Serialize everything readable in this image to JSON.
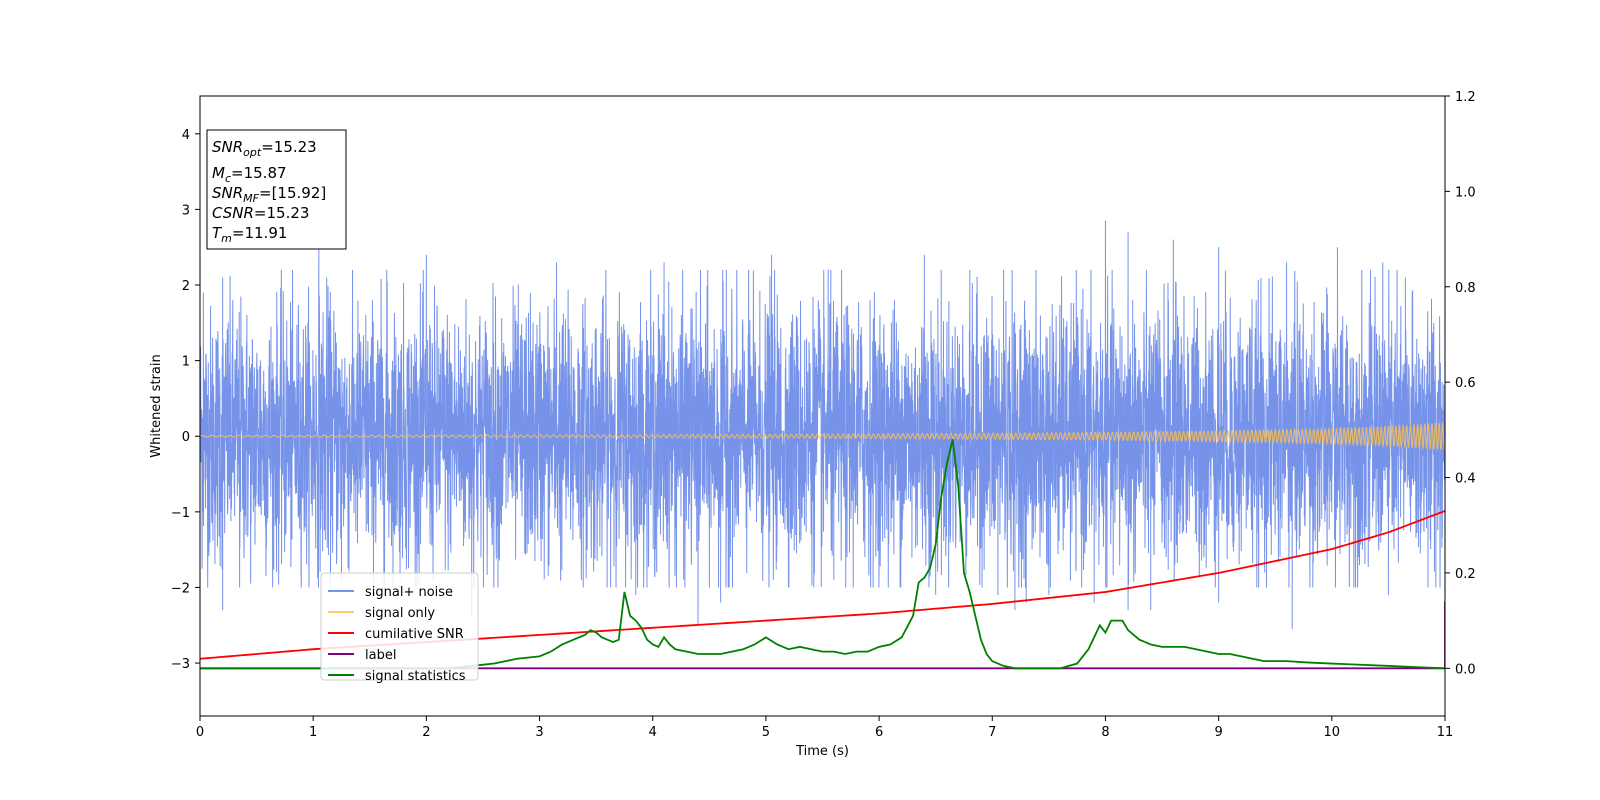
{
  "chart_data": {
    "type": "line",
    "xlabel": "Time (s)",
    "ylabel": "Whitened strain",
    "xlim": [
      0,
      11
    ],
    "ylim_left": [
      -3.7,
      4.5
    ],
    "ylim_right": [
      -0.1,
      1.2
    ],
    "x_ticks": [
      0,
      1,
      2,
      3,
      4,
      5,
      6,
      7,
      8,
      9,
      10,
      11
    ],
    "y_ticks_left": [
      -3,
      -2,
      -1,
      0,
      1,
      2,
      3,
      4
    ],
    "y_ticks_right": [
      "0.0",
      "0.2",
      "0.4",
      "0.6",
      "0.8",
      "1.0",
      "1.2"
    ],
    "grid": false,
    "legend_position": "lower-left",
    "annotation": {
      "lines": [
        {
          "name": "SNR",
          "sub": "opt",
          "value": "=15.23"
        },
        {
          "name": "M",
          "sub": "c",
          "value": "=15.87"
        },
        {
          "name": "SNR",
          "sub": "MF",
          "value": "=[15.92]"
        },
        {
          "name": "CSNR",
          "sub": "",
          "value": "=15.23"
        },
        {
          "name": "T",
          "sub": "m",
          "value": "=11.91"
        }
      ]
    },
    "series": [
      {
        "name": "signal+ noise",
        "axis": "left",
        "color": "#4169e1",
        "description_amplitude_std": 0.85,
        "peak_points": [
          [
            0.03,
            1.9
          ],
          [
            0.2,
            2.1
          ],
          [
            1.05,
            2.6
          ],
          [
            1.12,
            2.1
          ],
          [
            1.65,
            2.2
          ],
          [
            2.0,
            2.4
          ],
          [
            3.15,
            2.3
          ],
          [
            4.1,
            2.3
          ],
          [
            4.65,
            2.2
          ],
          [
            5.05,
            2.4
          ],
          [
            5.55,
            2.2
          ],
          [
            6.4,
            2.4
          ],
          [
            7.1,
            2.2
          ],
          [
            8.0,
            2.85
          ],
          [
            8.2,
            2.7
          ],
          [
            8.6,
            2.6
          ],
          [
            9.0,
            2.5
          ],
          [
            9.6,
            2.3
          ],
          [
            10.05,
            2.5
          ],
          [
            10.45,
            2.3
          ],
          [
            10.65,
            2.1
          ],
          [
            11.0,
            2.2
          ]
        ],
        "trough_points": [
          [
            0.2,
            -2.3
          ],
          [
            0.35,
            -2.0
          ],
          [
            1.25,
            -1.9
          ],
          [
            2.4,
            -2.4
          ],
          [
            3.85,
            -2.1
          ],
          [
            4.4,
            -2.5
          ],
          [
            4.6,
            -2.2
          ],
          [
            5.6,
            -1.9
          ],
          [
            6.5,
            -2.1
          ],
          [
            7.05,
            -2.1
          ],
          [
            7.2,
            -2.3
          ],
          [
            7.3,
            -2.2
          ],
          [
            7.5,
            -2.1
          ],
          [
            7.9,
            -2.2
          ],
          [
            8.2,
            -2.3
          ],
          [
            8.4,
            -2.3
          ],
          [
            9.0,
            -2.2
          ],
          [
            9.65,
            -2.55
          ],
          [
            10.5,
            -2.1
          ],
          [
            10.85,
            -2.0
          ]
        ]
      },
      {
        "name": "signal only",
        "axis": "left",
        "color": "#ffc04c",
        "envelope": [
          [
            0,
            0.01
          ],
          [
            2,
            0.015
          ],
          [
            4,
            0.02
          ],
          [
            6,
            0.03
          ],
          [
            8,
            0.05
          ],
          [
            9,
            0.07
          ],
          [
            10,
            0.1
          ],
          [
            10.5,
            0.13
          ],
          [
            11,
            0.18
          ]
        ]
      },
      {
        "name": "cumilative SNR",
        "axis": "right",
        "color": "#ff0000",
        "x": [
          0,
          1,
          2,
          3,
          4,
          5,
          6,
          7,
          8,
          9,
          10,
          10.5,
          11
        ],
        "values": [
          0.02,
          0.04,
          0.055,
          0.07,
          0.085,
          0.1,
          0.115,
          0.135,
          0.16,
          0.2,
          0.25,
          0.285,
          0.33
        ]
      },
      {
        "name": "label",
        "axis": "right",
        "color": "#800080",
        "x": [
          0,
          10.98,
          11.0,
          11.0
        ],
        "values": [
          0.0,
          0.0,
          0.0,
          0.14
        ]
      },
      {
        "name": "signal statistics",
        "axis": "right",
        "color": "#008000",
        "x": [
          0,
          0.5,
          1.0,
          1.5,
          2.0,
          2.2,
          2.4,
          2.6,
          2.8,
          3.0,
          3.1,
          3.2,
          3.3,
          3.4,
          3.45,
          3.5,
          3.55,
          3.6,
          3.65,
          3.7,
          3.75,
          3.8,
          3.85,
          3.9,
          3.95,
          4.0,
          4.05,
          4.1,
          4.15,
          4.2,
          4.3,
          4.4,
          4.5,
          4.6,
          4.7,
          4.8,
          4.9,
          5.0,
          5.1,
          5.2,
          5.3,
          5.4,
          5.5,
          5.6,
          5.7,
          5.8,
          5.9,
          6.0,
          6.1,
          6.2,
          6.3,
          6.35,
          6.4,
          6.45,
          6.5,
          6.55,
          6.6,
          6.65,
          6.7,
          6.75,
          6.8,
          6.85,
          6.9,
          6.95,
          7.0,
          7.1,
          7.2,
          7.4,
          7.6,
          7.75,
          7.85,
          7.95,
          8.0,
          8.05,
          8.15,
          8.2,
          8.25,
          8.3,
          8.4,
          8.5,
          8.6,
          8.7,
          8.8,
          8.9,
          9.0,
          9.1,
          9.2,
          9.3,
          9.4,
          9.6,
          9.8,
          10.0,
          10.2,
          10.4,
          10.6,
          10.8,
          11.0
        ],
        "values": [
          0.0,
          0.0,
          0.0,
          0.0,
          0.0,
          0.0,
          0.005,
          0.01,
          0.02,
          0.025,
          0.035,
          0.05,
          0.06,
          0.07,
          0.08,
          0.075,
          0.065,
          0.06,
          0.055,
          0.06,
          0.16,
          0.11,
          0.1,
          0.085,
          0.06,
          0.05,
          0.045,
          0.065,
          0.05,
          0.04,
          0.035,
          0.03,
          0.03,
          0.03,
          0.035,
          0.04,
          0.05,
          0.065,
          0.05,
          0.04,
          0.045,
          0.04,
          0.035,
          0.035,
          0.03,
          0.035,
          0.035,
          0.045,
          0.05,
          0.065,
          0.11,
          0.18,
          0.19,
          0.21,
          0.26,
          0.36,
          0.43,
          0.48,
          0.38,
          0.2,
          0.16,
          0.11,
          0.06,
          0.03,
          0.015,
          0.005,
          0.0,
          0.0,
          0.0,
          0.01,
          0.04,
          0.09,
          0.075,
          0.1,
          0.1,
          0.08,
          0.07,
          0.06,
          0.05,
          0.045,
          0.045,
          0.045,
          0.04,
          0.035,
          0.03,
          0.03,
          0.025,
          0.02,
          0.015,
          0.015,
          0.012,
          0.01,
          0.008,
          0.006,
          0.004,
          0.002,
          0.0
        ]
      }
    ]
  }
}
